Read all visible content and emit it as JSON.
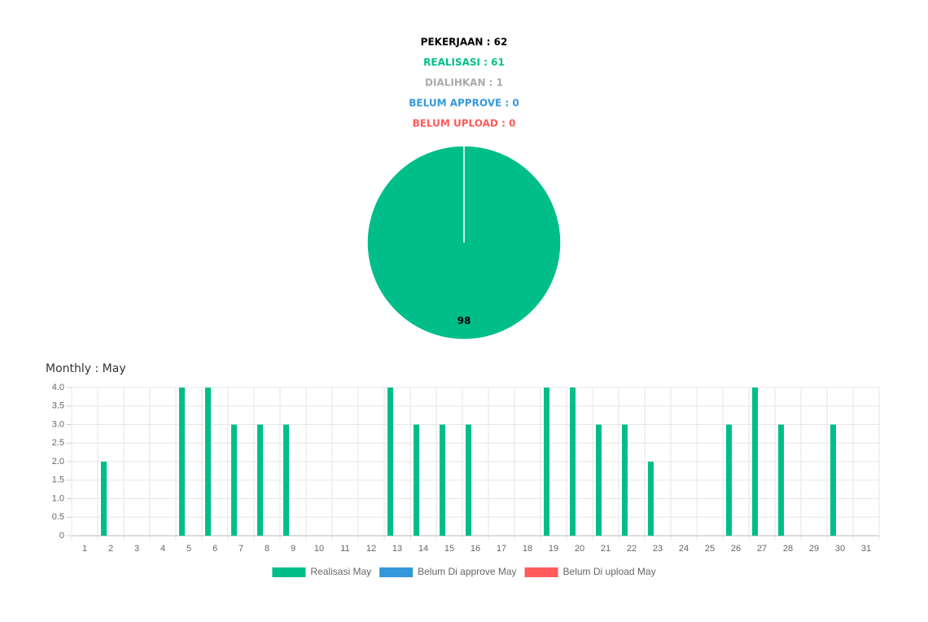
{
  "summary": [
    "PEKERJAAN : 62",
    "REALISASI : 61",
    "DIALIHKAN : 1",
    "BELUM APPROVE : 0",
    "BELUM UPLOAD : 0"
  ],
  "chart_data": [
    {
      "type": "pie",
      "values": [
        98
      ],
      "colors": [
        "#00be8a"
      ]
    },
    {
      "type": "bar",
      "title": "Monthly : May",
      "categories": [
        "1",
        "2",
        "3",
        "4",
        "5",
        "6",
        "7",
        "8",
        "9",
        "10",
        "11",
        "12",
        "13",
        "14",
        "15",
        "16",
        "17",
        "18",
        "19",
        "20",
        "21",
        "22",
        "23",
        "24",
        "25",
        "26",
        "27",
        "28",
        "29",
        "30",
        "31"
      ],
      "series": [
        {
          "name": "Realisasi May",
          "color": "#00be8a",
          "values": [
            0,
            2,
            0,
            0,
            4,
            4,
            3,
            3,
            3,
            0,
            0,
            0,
            4,
            3,
            3,
            3,
            0,
            0,
            4,
            4,
            3,
            3,
            2,
            0,
            0,
            3,
            4,
            3,
            0,
            3,
            0
          ]
        },
        {
          "name": "Belum Di approve May",
          "color": "#3498db",
          "values": [
            0,
            0,
            0,
            0,
            0,
            0,
            0,
            0,
            0,
            0,
            0,
            0,
            0,
            0,
            0,
            0,
            0,
            0,
            0,
            0,
            0,
            0,
            0,
            0,
            0,
            0,
            0,
            0,
            0,
            0,
            0
          ]
        },
        {
          "name": "Belum Di upload May",
          "color": "#ff5b5b",
          "values": [
            0,
            0,
            0,
            0,
            0,
            0,
            0,
            0,
            0,
            0,
            0,
            0,
            0,
            0,
            0,
            0,
            0,
            0,
            0,
            0,
            0,
            0,
            0,
            0,
            0,
            0,
            0,
            0,
            0,
            0,
            0
          ]
        }
      ],
      "ylim": [
        0,
        4
      ],
      "yticks": [
        0,
        0.5,
        {
          "value": 1,
          "label": "1.0"
        },
        1.5,
        {
          "value": 2,
          "label": "2.0"
        },
        2.5,
        {
          "value": 3,
          "label": "3.0"
        },
        3.5,
        {
          "value": 4,
          "label": "4.0"
        }
      ],
      "grid": true,
      "legend": "bottom"
    }
  ]
}
